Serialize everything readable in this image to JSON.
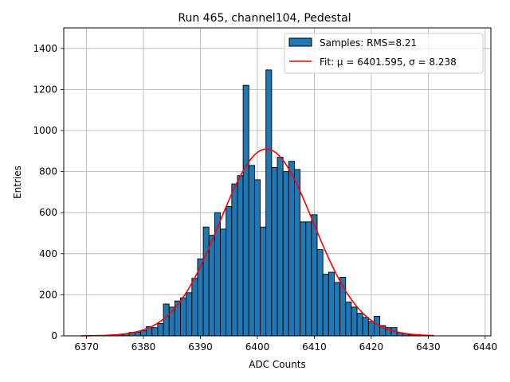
{
  "chart_data": {
    "type": "bar",
    "title": "Run 465, channel104, Pedestal",
    "xlabel": "ADC Counts",
    "ylabel": "Entries",
    "xlim": [
      6366,
      6441
    ],
    "ylim": [
      0,
      1500
    ],
    "xticks": [
      6370,
      6380,
      6390,
      6400,
      6410,
      6420,
      6430,
      6440
    ],
    "yticks": [
      0,
      200,
      400,
      600,
      800,
      1000,
      1200,
      1400
    ],
    "grid": true,
    "legend_position": "top-right",
    "colors": {
      "bars": "#1f77b4",
      "bar_edge": "#000000",
      "fit": "#ff0000",
      "grid": "#b0b0b0"
    },
    "histogram": {
      "name": "Samples: RMS=8.21",
      "bins": [
        {
          "x": 6373,
          "y": 2
        },
        {
          "x": 6374,
          "y": 2
        },
        {
          "x": 6375,
          "y": 3
        },
        {
          "x": 6376,
          "y": 5
        },
        {
          "x": 6377,
          "y": 10
        },
        {
          "x": 6378,
          "y": 17
        },
        {
          "x": 6379,
          "y": 18
        },
        {
          "x": 6380,
          "y": 25
        },
        {
          "x": 6381,
          "y": 45
        },
        {
          "x": 6382,
          "y": 40
        },
        {
          "x": 6383,
          "y": 60
        },
        {
          "x": 6384,
          "y": 155
        },
        {
          "x": 6385,
          "y": 140
        },
        {
          "x": 6386,
          "y": 170
        },
        {
          "x": 6387,
          "y": 185
        },
        {
          "x": 6388,
          "y": 210
        },
        {
          "x": 6389,
          "y": 280
        },
        {
          "x": 6390,
          "y": 375
        },
        {
          "x": 6391,
          "y": 530
        },
        {
          "x": 6392,
          "y": 490
        },
        {
          "x": 6393,
          "y": 600
        },
        {
          "x": 6394,
          "y": 520
        },
        {
          "x": 6395,
          "y": 630
        },
        {
          "x": 6396,
          "y": 740
        },
        {
          "x": 6397,
          "y": 780
        },
        {
          "x": 6398,
          "y": 1220
        },
        {
          "x": 6399,
          "y": 830
        },
        {
          "x": 6400,
          "y": 760
        },
        {
          "x": 6401,
          "y": 530
        },
        {
          "x": 6402,
          "y": 1295
        },
        {
          "x": 6403,
          "y": 820
        },
        {
          "x": 6404,
          "y": 870
        },
        {
          "x": 6405,
          "y": 800
        },
        {
          "x": 6406,
          "y": 850
        },
        {
          "x": 6407,
          "y": 810
        },
        {
          "x": 6408,
          "y": 555
        },
        {
          "x": 6409,
          "y": 555
        },
        {
          "x": 6410,
          "y": 590
        },
        {
          "x": 6411,
          "y": 420
        },
        {
          "x": 6412,
          "y": 300
        },
        {
          "x": 6413,
          "y": 310
        },
        {
          "x": 6414,
          "y": 260
        },
        {
          "x": 6415,
          "y": 285
        },
        {
          "x": 6416,
          "y": 165
        },
        {
          "x": 6417,
          "y": 140
        },
        {
          "x": 6418,
          "y": 110
        },
        {
          "x": 6419,
          "y": 90
        },
        {
          "x": 6420,
          "y": 70
        },
        {
          "x": 6421,
          "y": 95
        },
        {
          "x": 6422,
          "y": 50
        },
        {
          "x": 6423,
          "y": 40
        },
        {
          "x": 6424,
          "y": 40
        },
        {
          "x": 6425,
          "y": 15
        },
        {
          "x": 6426,
          "y": 10
        },
        {
          "x": 6427,
          "y": 5
        },
        {
          "x": 6428,
          "y": 3
        },
        {
          "x": 6429,
          "y": 2
        },
        {
          "x": 6430,
          "y": 2
        }
      ]
    },
    "fit": {
      "name": "Fit: μ = 6401.595, σ = 8.238",
      "type": "gaussian",
      "mu": 6401.595,
      "sigma": 8.238,
      "amplitude": 910,
      "x_range": [
        6369,
        6431
      ]
    }
  }
}
